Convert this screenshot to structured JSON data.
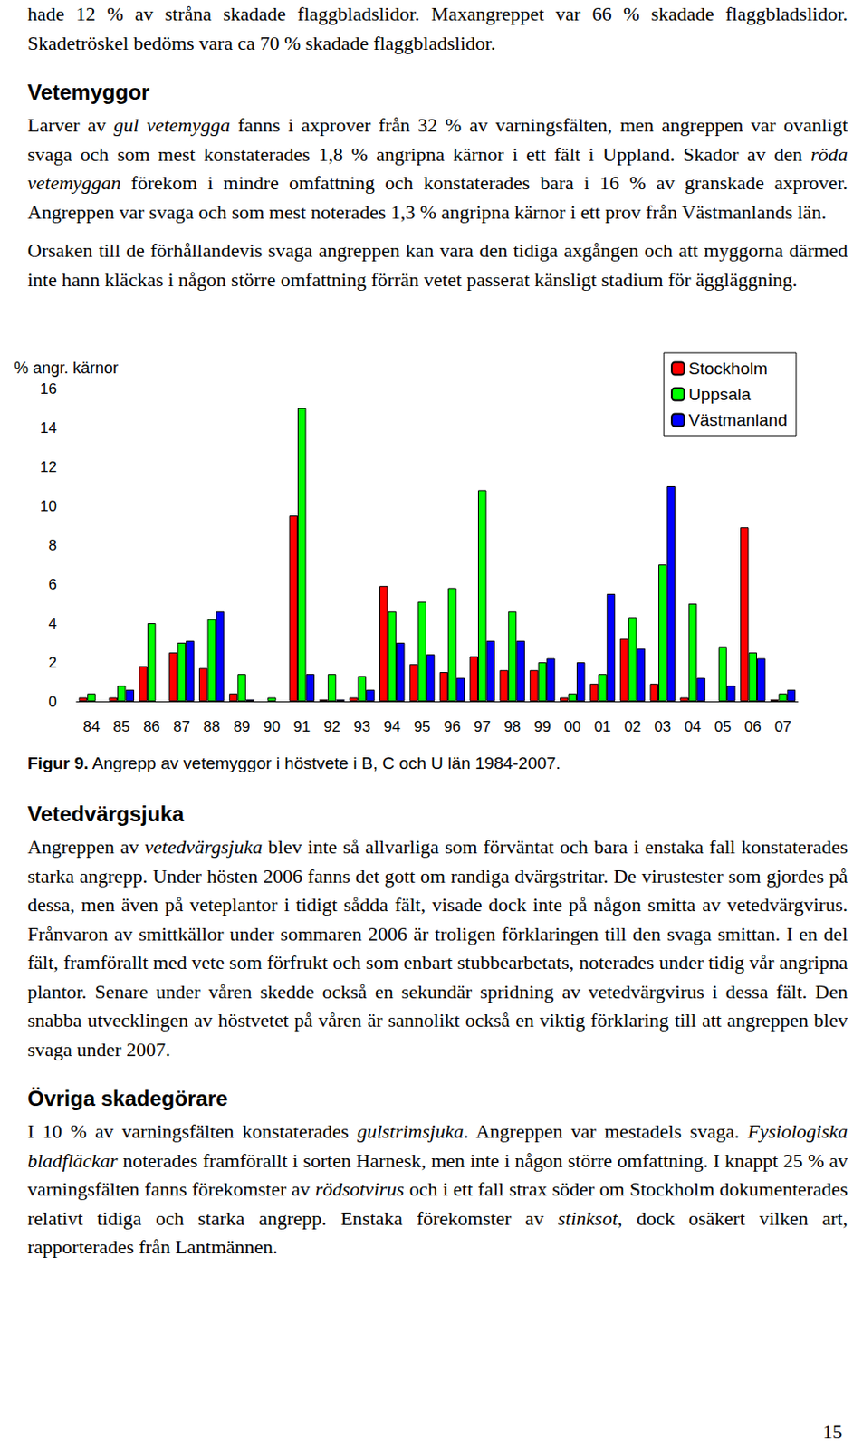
{
  "page": {
    "before": [
      {
        "paragraph": [
          "hade 12 % av stråna skadade flaggbladslidor. Maxangreppet var 66 % skadade flaggbladslidor. Skadetröskel bedöms vara ca 70 % skadade flaggbladslidor."
        ]
      },
      {
        "heading": "Vetemyggor"
      },
      {
        "paragraph": [
          "Larver av ",
          {
            "em": "gul vetemygga"
          },
          " fanns i axprover från 32 % av varningsfälten, men angreppen var ovanligt svaga och som mest konstaterades 1,8 % angripna kärnor i ett fält i Uppland. Skador av den ",
          {
            "em": "röda vetemyggan"
          },
          " förekom i mindre omfattning och konstaterades bara i 16 % av granskade axprover. Angreppen var svaga och som mest noterades 1,3 % angripna kärnor i ett prov från Västmanlands län."
        ]
      },
      {
        "paragraph": [
          "Orsaken till de förhållandevis svaga angreppen kan vara den tidiga axgången och att myggorna därmed inte hann kläckas i någon större omfattning förrän vetet passerat känsligt stadium för äggläggning."
        ]
      }
    ],
    "caption": {
      "label": "Figur 9.",
      "text": "Angrepp av vetemyggor i höstvete i B, C och U län 1984-2007."
    },
    "after": [
      {
        "heading": "Vetedvärgsjuka"
      },
      {
        "paragraph": [
          "Angreppen av ",
          {
            "em": "vetedvärgsjuka"
          },
          " blev inte så allvarliga som förväntat och bara i enstaka fall konstaterades starka angrepp. Under hösten 2006 fanns det gott om randiga dvärgstritar. De virustester som gjordes på dessa, men även på veteplantor i tidigt sådda fält, visade dock inte på någon smitta av vetedvärgvirus. Frånvaron av smittkällor under sommaren 2006 är troligen förklaringen till den svaga smittan. I en del fält, framförallt med vete som förfrukt och som enbart stubbearbetats, noterades under tidig vår angripna plantor. Senare under våren skedde också en sekundär spridning av vetedvärgvirus i dessa fält. Den snabba utvecklingen av höstvetet på våren är sannolikt också en viktig förklaring till att angreppen blev svaga under 2007."
        ]
      },
      {
        "heading": "Övriga skadegörare"
      },
      {
        "paragraph": [
          "I 10 % av varningsfälten konstaterades ",
          {
            "em": "gulstrimsjuka"
          },
          ". Angreppen var mestadels svaga. ",
          {
            "em": "Fysiologiska bladfläckar"
          },
          " noterades framförallt i sorten Harnesk, men inte i någon större omfattning. I knappt 25 % av varningsfälten fanns förekomster av ",
          {
            "em": "rödsotvirus"
          },
          " och i ett fall strax söder om Stockholm dokumenterades relativt tidiga och starka angrepp. Enstaka förekomster av ",
          {
            "em": "stinksot"
          },
          ", dock osäkert vilken art, rapporterades från Lantmännen."
        ]
      }
    ],
    "page_number": "15"
  },
  "chart_data": {
    "type": "bar",
    "ylabel": "% angr. kärnor",
    "categories": [
      "84",
      "85",
      "86",
      "87",
      "88",
      "89",
      "90",
      "91",
      "92",
      "93",
      "94",
      "95",
      "96",
      "97",
      "98",
      "99",
      "00",
      "01",
      "02",
      "03",
      "04",
      "05",
      "06",
      "07"
    ],
    "series": [
      {
        "name": "Stockholm",
        "color": "#ff0000",
        "values": [
          0.2,
          0.2,
          1.8,
          2.5,
          1.7,
          0.4,
          null,
          9.5,
          0.1,
          0.2,
          5.9,
          1.9,
          1.5,
          2.3,
          1.6,
          1.6,
          0.2,
          0.9,
          3.2,
          0.9,
          0.2,
          null,
          8.9,
          0.1
        ]
      },
      {
        "name": "Uppsala",
        "color": "#00ff00",
        "values": [
          0.4,
          0.8,
          4.0,
          3.0,
          4.2,
          1.4,
          0.2,
          15.0,
          1.4,
          1.3,
          4.6,
          5.1,
          5.8,
          10.8,
          4.6,
          2.0,
          0.4,
          1.4,
          4.3,
          7.0,
          5.0,
          2.8,
          2.5,
          0.4
        ]
      },
      {
        "name": "Västmanland",
        "color": "#0000ff",
        "values": [
          null,
          0.6,
          null,
          3.1,
          4.6,
          0.1,
          null,
          1.4,
          0.1,
          0.6,
          3.0,
          2.4,
          1.2,
          3.1,
          3.1,
          2.2,
          2.0,
          5.5,
          2.7,
          11.0,
          1.2,
          0.8,
          2.2,
          0.6
        ]
      }
    ],
    "ylim": [
      0,
      16
    ],
    "yticks": [
      0,
      2,
      4,
      6,
      8,
      10,
      12,
      14,
      16
    ],
    "grid": false,
    "legend": "upper right"
  }
}
